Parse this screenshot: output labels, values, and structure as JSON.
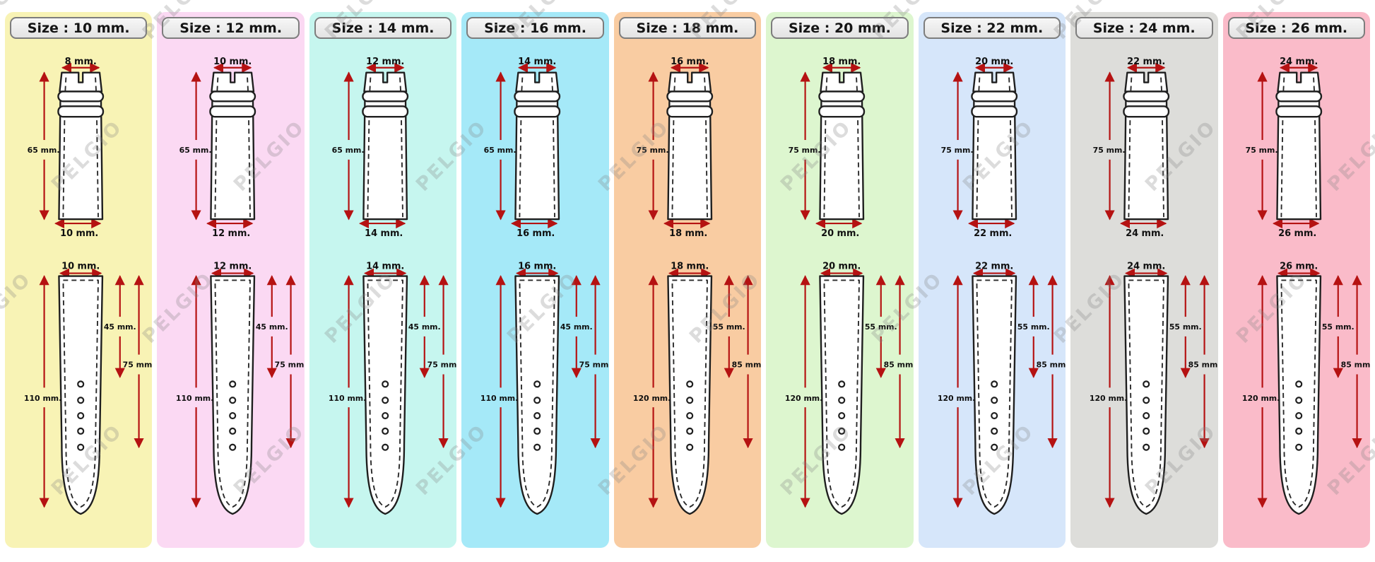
{
  "watermark": {
    "text": "PELGIO"
  },
  "colors": {
    "arrow": "#B51212",
    "outline": "#1F1F1F",
    "badge_border": "#7D7D7D",
    "badge_fill": "#ECECEC"
  },
  "panels": [
    {
      "header": "Size : 10 mm.",
      "bg": "#F8F3B5",
      "upper": {
        "top_width": "8 mm.",
        "length": "65 mm.",
        "bottom_width": "10 mm."
      },
      "lower": {
        "top_width": "10 mm.",
        "length": "110 mm.",
        "to_first_hole": "45 mm.",
        "to_last_hole": "75 mm."
      }
    },
    {
      "header": "Size : 12 mm.",
      "bg": "#FBD9F3",
      "upper": {
        "top_width": "10 mm.",
        "length": "65 mm.",
        "bottom_width": "12 mm."
      },
      "lower": {
        "top_width": "12 mm.",
        "length": "110 mm.",
        "to_first_hole": "45 mm.",
        "to_last_hole": "75 mm."
      }
    },
    {
      "header": "Size : 14 mm.",
      "bg": "#C6F6EF",
      "upper": {
        "top_width": "12 mm.",
        "length": "65 mm.",
        "bottom_width": "14 mm."
      },
      "lower": {
        "top_width": "14 mm.",
        "length": "110 mm.",
        "to_first_hole": "45 mm.",
        "to_last_hole": "75 mm."
      }
    },
    {
      "header": "Size : 16 mm.",
      "bg": "#A5E9F8",
      "upper": {
        "top_width": "14 mm.",
        "length": "65 mm.",
        "bottom_width": "16 mm."
      },
      "lower": {
        "top_width": "16 mm.",
        "length": "110 mm.",
        "to_first_hole": "45 mm.",
        "to_last_hole": "75 mm."
      }
    },
    {
      "header": "Size : 18 mm.",
      "bg": "#F9CCA2",
      "upper": {
        "top_width": "16 mm.",
        "length": "75 mm.",
        "bottom_width": "18 mm."
      },
      "lower": {
        "top_width": "18 mm.",
        "length": "120 mm.",
        "to_first_hole": "55 mm.",
        "to_last_hole": "85 mm."
      }
    },
    {
      "header": "Size : 20 mm.",
      "bg": "#DDF6CF",
      "upper": {
        "top_width": "18 mm.",
        "length": "75 mm.",
        "bottom_width": "20 mm."
      },
      "lower": {
        "top_width": "20 mm.",
        "length": "120 mm.",
        "to_first_hole": "55 mm.",
        "to_last_hole": "85 mm."
      }
    },
    {
      "header": "Size : 22 mm.",
      "bg": "#D6E6FA",
      "upper": {
        "top_width": "20 mm.",
        "length": "75 mm.",
        "bottom_width": "22 mm."
      },
      "lower": {
        "top_width": "22 mm.",
        "length": "120 mm.",
        "to_first_hole": "55 mm.",
        "to_last_hole": "85 mm."
      }
    },
    {
      "header": "Size : 24 mm.",
      "bg": "#DDDDDA",
      "upper": {
        "top_width": "22 mm.",
        "length": "75 mm.",
        "bottom_width": "24 mm."
      },
      "lower": {
        "top_width": "24 mm.",
        "length": "120 mm.",
        "to_first_hole": "55 mm.",
        "to_last_hole": "85 mm."
      }
    },
    {
      "header": "Size : 26 mm.",
      "bg": "#FABBC9",
      "upper": {
        "top_width": "24 mm.",
        "length": "75 mm.",
        "bottom_width": "26 mm."
      },
      "lower": {
        "top_width": "26 mm.",
        "length": "120 mm.",
        "to_first_hole": "55 mm.",
        "to_last_hole": "85 mm."
      }
    }
  ]
}
